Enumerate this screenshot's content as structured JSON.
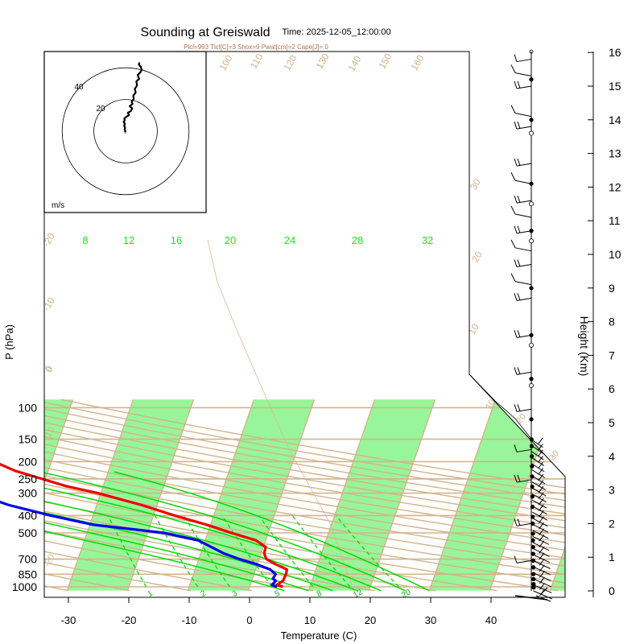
{
  "chart_data": {
    "type": "skew-t",
    "title": "Sounding at Greiswald",
    "time_label": "Time: 2025-12-05_12:00:00",
    "indices_label": "Plcl=993 Tlcl[C]=3 Shox=9 Pwat[cm]=2 Cape[J]= 0",
    "xlabel": "Temperature (C)",
    "ylabel": "P (hPa)",
    "ylabel_right": "Height (Km)",
    "hodograph_unit": "m/s",
    "hodograph_rings": [
      "20",
      "40"
    ],
    "x_ticks": [
      "-30",
      "-20",
      "-10",
      "0",
      "10",
      "20",
      "30",
      "40"
    ],
    "p_ticks": [
      "100",
      "150",
      "200",
      "250",
      "300",
      "400",
      "500",
      "700",
      "850",
      "1000"
    ],
    "height_ticks": [
      "0",
      "1",
      "2",
      "3",
      "4",
      "5",
      "6",
      "7",
      "8",
      "9",
      "10",
      "11",
      "12",
      "13",
      "14",
      "15",
      "16"
    ],
    "band_labels": [
      "-20",
      "-10",
      "0",
      "10",
      "20",
      "30"
    ],
    "dry_adiabat_labels": [
      "100",
      "110",
      "120",
      "130",
      "140",
      "150",
      "160",
      "-20",
      "-10",
      "0",
      "10",
      "20",
      "30"
    ],
    "moist_labels": [
      "8",
      "12",
      "16",
      "20",
      "24",
      "28",
      "32"
    ],
    "mixing_ratio_labels": [
      "1",
      "2",
      "3",
      "5",
      "8",
      "12",
      "20"
    ],
    "colors": {
      "temperature": "#ee0000",
      "dewpoint": "#0000ee",
      "moist_adiabat": "#00dd00",
      "band": "#99f599",
      "dry_adiabat": "#d2b48c"
    },
    "temperature_profile": [
      {
        "p": 1000,
        "t": 5.5
      },
      {
        "p": 975,
        "t": 4.4
      },
      {
        "p": 925,
        "t": 5.2
      },
      {
        "p": 850,
        "t": 5.3
      },
      {
        "p": 800,
        "t": 5.2
      },
      {
        "p": 750,
        "t": 3.1
      },
      {
        "p": 700,
        "t": 1.2
      },
      {
        "p": 650,
        "t": 0.5
      },
      {
        "p": 600,
        "t": 0.4
      },
      {
        "p": 550,
        "t": -1.6
      },
      {
        "p": 500,
        "t": -6.1
      },
      {
        "p": 450,
        "t": -10.7
      },
      {
        "p": 400,
        "t": -16.5
      },
      {
        "p": 350,
        "t": -22.5
      },
      {
        "p": 300,
        "t": -30.5
      },
      {
        "p": 275,
        "t": -36.0
      },
      {
        "p": 250,
        "t": -40.5
      },
      {
        "p": 225,
        "t": -45.5
      },
      {
        "p": 200,
        "t": -49.5
      },
      {
        "p": 175,
        "t": -51.5
      },
      {
        "p": 150,
        "t": -52.5
      },
      {
        "p": 125,
        "t": -55.5
      },
      {
        "p": 106,
        "t": -58.5
      }
    ],
    "dewpoint_profile": [
      {
        "p": 1000,
        "t": 4.5
      },
      {
        "p": 975,
        "t": 3.6
      },
      {
        "p": 925,
        "t": 4.0
      },
      {
        "p": 900,
        "t": 3.4
      },
      {
        "p": 850,
        "t": 3.6
      },
      {
        "p": 800,
        "t": 2.4
      },
      {
        "p": 750,
        "t": 0.0
      },
      {
        "p": 700,
        "t": -3.3
      },
      {
        "p": 650,
        "t": -6.2
      },
      {
        "p": 600,
        "t": -8.6
      },
      {
        "p": 550,
        "t": -11.2
      },
      {
        "p": 500,
        "t": -17.2
      },
      {
        "p": 450,
        "t": -29.5
      },
      {
        "p": 400,
        "t": -37.0
      },
      {
        "p": 350,
        "t": -44.5
      },
      {
        "p": 300,
        "t": -51.0
      },
      {
        "p": 275,
        "t": -56.5
      },
      {
        "p": 250,
        "t": -61.5
      },
      {
        "p": 225,
        "t": -66.5
      },
      {
        "p": 200,
        "t": -71.0
      },
      {
        "p": 175,
        "t": -76.0
      },
      {
        "p": 150,
        "t": -74.5
      },
      {
        "p": 125,
        "t": -72.0
      },
      {
        "p": 106,
        "t": -69.5
      }
    ],
    "hodograph_trace": [
      [
        0.0,
        0.0
      ],
      [
        -0.6,
        1.0
      ],
      [
        -0.3,
        2.2
      ],
      [
        -0.9,
        3.4
      ],
      [
        -0.4,
        4.6
      ],
      [
        -1.2,
        5.8
      ],
      [
        -0.5,
        7.0
      ],
      [
        -0.8,
        8.0
      ],
      [
        0.6,
        9.2
      ],
      [
        2.2,
        10.2
      ],
      [
        1.4,
        11.6
      ],
      [
        3.4,
        12.8
      ],
      [
        4.2,
        14.4
      ],
      [
        2.6,
        15.8
      ],
      [
        4.4,
        17.2
      ],
      [
        3.8,
        18.6
      ],
      [
        5.2,
        20.4
      ],
      [
        4.8,
        22.4
      ],
      [
        6.4,
        24.4
      ],
      [
        5.8,
        26.6
      ],
      [
        7.2,
        28.8
      ],
      [
        6.8,
        31.4
      ],
      [
        8.6,
        33.0
      ],
      [
        7.6,
        35.4
      ],
      [
        9.4,
        37.2
      ],
      [
        10.2,
        38.8
      ],
      [
        9.6,
        40.6
      ],
      [
        8.4,
        42.0
      ],
      [
        8.8,
        43.4
      ]
    ]
  }
}
